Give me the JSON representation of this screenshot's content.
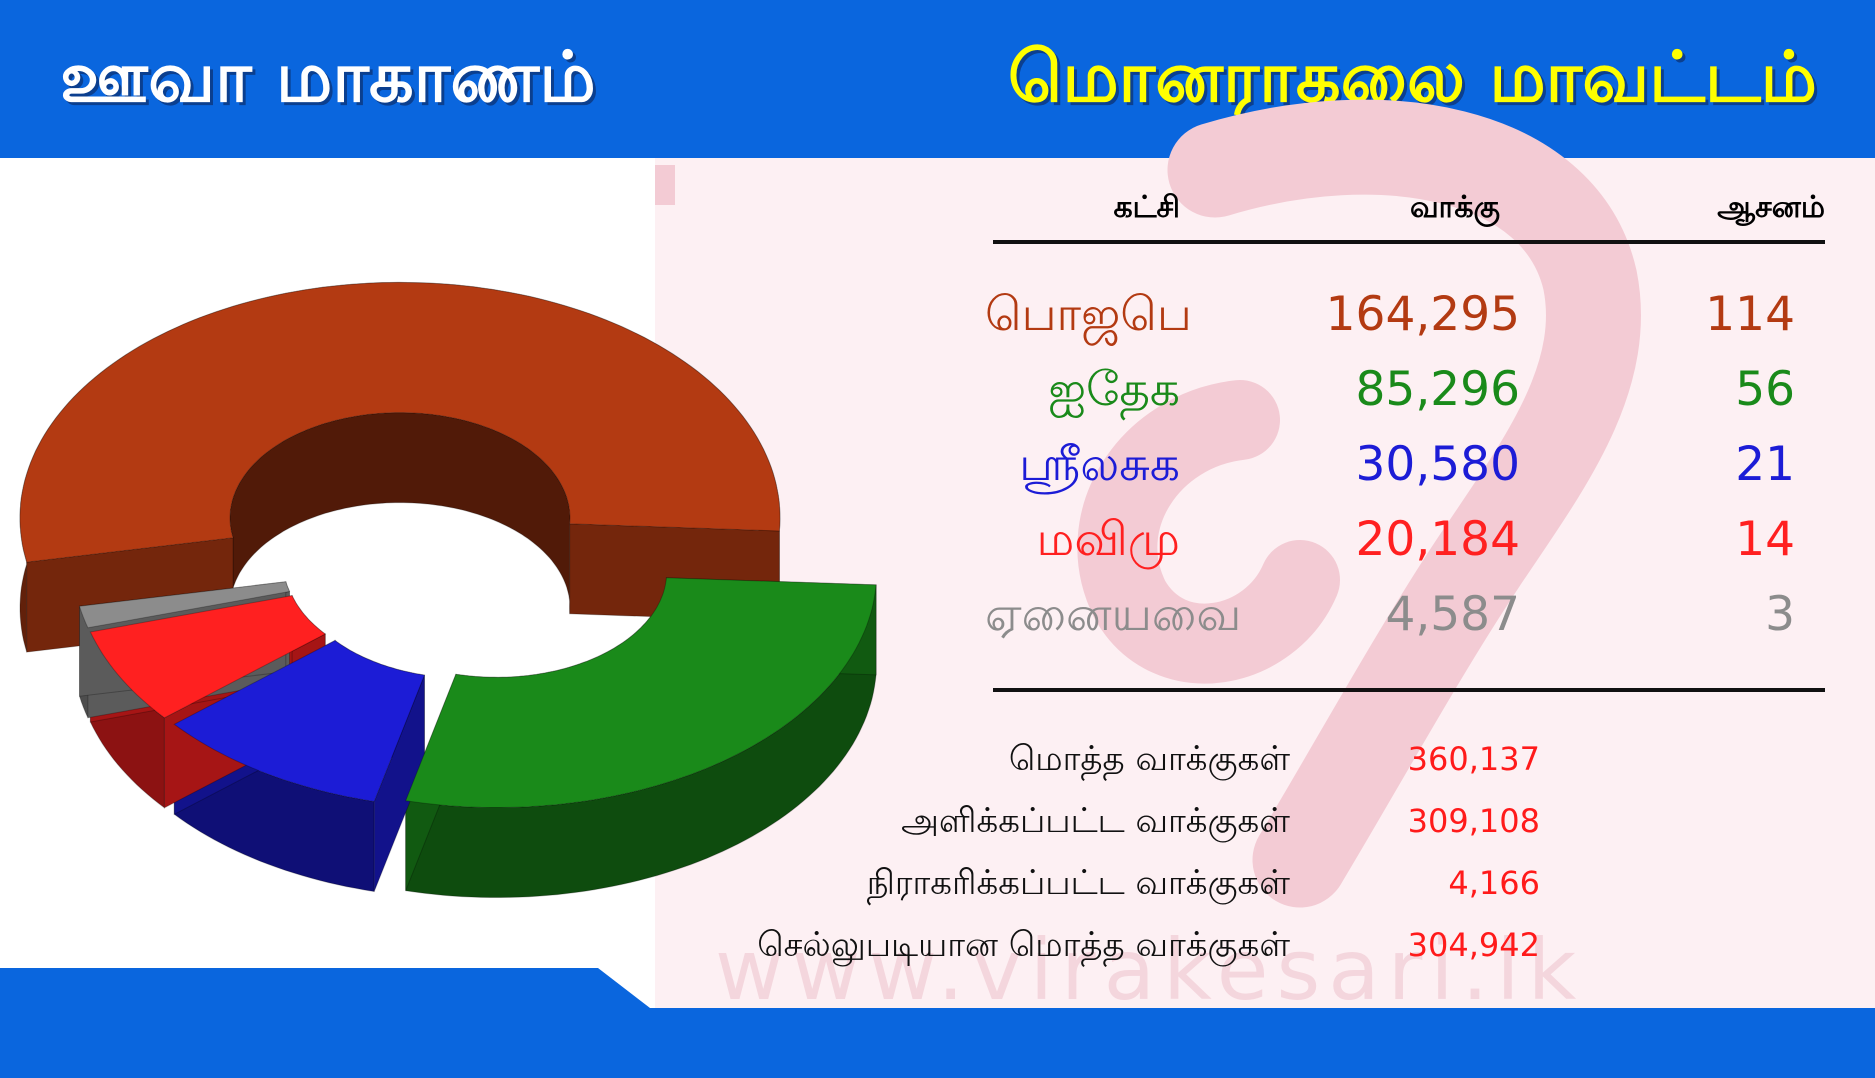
{
  "header": {
    "province": "ஊவா மாகாணம்",
    "district": "மொனராகலை மாவட்டம்"
  },
  "watermark": "www.virakesari.lk",
  "table": {
    "headers": {
      "party": "கட்சி",
      "votes": "வாக்கு",
      "seats": "ஆசனம்"
    },
    "rows": [
      {
        "party": "பொஜபெ",
        "votes": "164,295",
        "seats": "114",
        "color": "#b33a12"
      },
      {
        "party": "ஐதேக",
        "votes": "85,296",
        "seats": "56",
        "color": "#1a8a1a"
      },
      {
        "party": "ஸ்ரீலசுக",
        "votes": "30,580",
        "seats": "21",
        "color": "#1c1cd6"
      },
      {
        "party": "மவிமு",
        "votes": "20,184",
        "seats": "14",
        "color": "#ff2020"
      },
      {
        "party": "ஏனையவை",
        "votes": "4,587",
        "seats": "3",
        "color": "#8c8c8c"
      }
    ]
  },
  "totals": [
    {
      "label": "மொத்த வாக்குகள்",
      "value": "360,137"
    },
    {
      "label": "அளிக்கப்பட்ட வாக்குகள்",
      "value": "309,108"
    },
    {
      "label": "நிராகரிக்கப்பட்ட வாக்குகள்",
      "value": "4,166"
    },
    {
      "label": "செல்லுபடியான மொத்த வாக்குகள்",
      "value": "304,942"
    }
  ],
  "chart_data": {
    "type": "pie",
    "style": "3d-donut-exploded",
    "categories": [
      "பொஜபெ",
      "ஐதேக",
      "ஸ்ரீலசுக",
      "மவிமு",
      "ஏனையவை"
    ],
    "values": [
      164295,
      85296,
      30580,
      20184,
      4587
    ],
    "colors": [
      "#b33a12",
      "#1a8a1a",
      "#1c1cd6",
      "#ff2020",
      "#8c8c8c"
    ],
    "title": "",
    "legend": "none"
  }
}
